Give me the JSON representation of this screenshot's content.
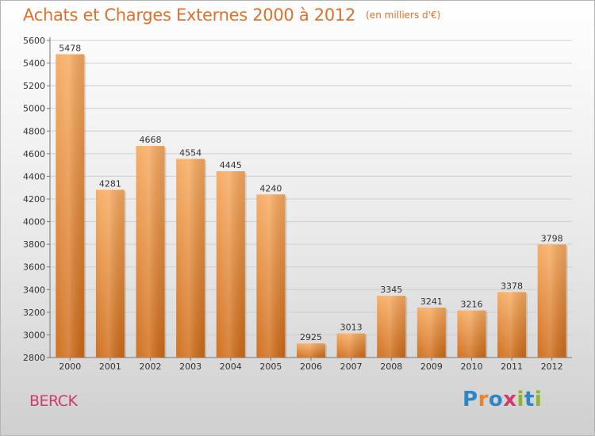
{
  "chart_data": {
    "type": "bar",
    "title": "Achats et Charges Externes 2000 à 2012",
    "unit": "(en milliers d'€)",
    "categories": [
      "2000",
      "2001",
      "2002",
      "2003",
      "2004",
      "2005",
      "2006",
      "2007",
      "2008",
      "2009",
      "2010",
      "2011",
      "2012"
    ],
    "values": [
      5478,
      4281,
      4668,
      4554,
      4445,
      4240,
      2925,
      3013,
      3345,
      3241,
      3216,
      3378,
      3798
    ],
    "ylim": [
      2800,
      5600
    ],
    "yticks": [
      2800,
      3000,
      3200,
      3400,
      3600,
      3800,
      4000,
      4200,
      4400,
      4600,
      4800,
      5000,
      5200,
      5400,
      5600
    ],
    "grid": true,
    "bar_color": "#e8842e"
  },
  "footer": {
    "commune": "BERCK",
    "brand": "Proxiti",
    "brand_colors": [
      "#2e86c8",
      "#e8842e",
      "#2e86c8",
      "#d03a6c",
      "#8ab52c",
      "#2e86c8",
      "#8ab52c"
    ]
  },
  "colors": {
    "title": "#e0702a",
    "commune": "#d03a6c"
  }
}
